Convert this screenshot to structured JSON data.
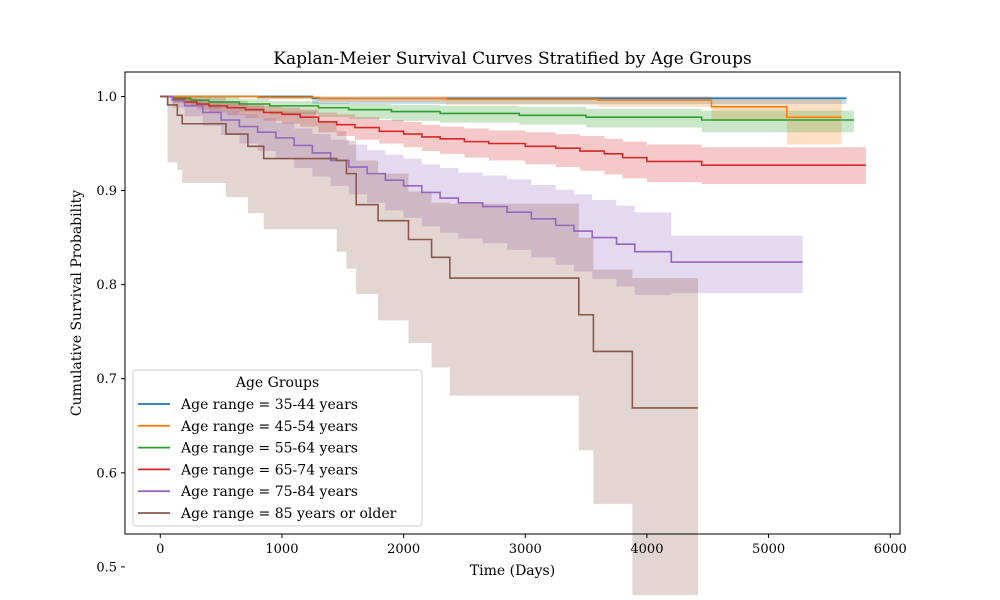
{
  "chart_data": {
    "type": "line",
    "title": "Kaplan-Meier Survival Curves Stratified by Age Groups",
    "xlabel": "Time (Days)",
    "ylabel": "Cumulative Survival Probability",
    "xlim": [
      -290,
      6080
    ],
    "ylim": [
      0.535,
      1.026
    ],
    "xticks": [
      0,
      1000,
      2000,
      3000,
      4000,
      5000,
      6000
    ],
    "xtick_labels": [
      "0",
      "1000",
      "2000",
      "3000",
      "4000",
      "5000",
      "6000"
    ],
    "yticks": [
      0.5,
      0.6,
      0.7,
      0.8,
      0.9,
      1.0
    ],
    "ytick_labels": [
      "0.5",
      "0.6",
      "0.7",
      "0.8",
      "0.9",
      "1.0"
    ],
    "grid": false,
    "legend": {
      "title": "Age Groups",
      "position": "lower-left"
    },
    "series": [
      {
        "name": "Age range = 35-44 years",
        "color": "#1f77b4",
        "x": [
          0,
          1250,
          5640
        ],
        "y": [
          1.0,
          0.998,
          0.998
        ],
        "ci_lower": [
          1.0,
          0.992,
          0.992
        ],
        "ci_upper": [
          1.0,
          1.0,
          1.0
        ]
      },
      {
        "name": "Age range = 45-54 years",
        "color": "#ff7f0e",
        "x": [
          0,
          800,
          1300,
          2350,
          3600,
          4530,
          5150,
          5600
        ],
        "y": [
          1.0,
          0.999,
          0.998,
          0.997,
          0.996,
          0.989,
          0.978,
          0.978
        ],
        "ci_lower": [
          1.0,
          0.997,
          0.994,
          0.991,
          0.989,
          0.974,
          0.949,
          0.949
        ],
        "ci_upper": [
          1.0,
          1.0,
          1.0,
          1.0,
          1.0,
          0.998,
          0.998,
          0.998
        ]
      },
      {
        "name": "Age range = 55-64 years",
        "color": "#2ca02c",
        "x": [
          0,
          100,
          250,
          400,
          650,
          900,
          1300,
          1550,
          1900,
          2300,
          2950,
          3500,
          4450,
          5700
        ],
        "y": [
          1.0,
          0.998,
          0.996,
          0.994,
          0.992,
          0.99,
          0.988,
          0.986,
          0.984,
          0.982,
          0.98,
          0.978,
          0.975,
          0.975
        ],
        "ci_lower": [
          1.0,
          0.994,
          0.99,
          0.987,
          0.984,
          0.981,
          0.978,
          0.976,
          0.974,
          0.972,
          0.97,
          0.967,
          0.962,
          0.962
        ],
        "ci_upper": [
          1.0,
          1.0,
          1.0,
          0.999,
          0.997,
          0.995,
          0.993,
          0.992,
          0.991,
          0.99,
          0.989,
          0.987,
          0.985,
          0.985
        ]
      },
      {
        "name": "Age range = 65-74 years",
        "color": "#d62728",
        "x": [
          0,
          100,
          200,
          300,
          400,
          550,
          700,
          850,
          1000,
          1150,
          1300,
          1450,
          1600,
          1800,
          2000,
          2150,
          2300,
          2500,
          2700,
          3000,
          3250,
          3450,
          3650,
          3800,
          4000,
          4450,
          5800
        ],
        "y": [
          1.0,
          0.997,
          0.994,
          0.992,
          0.99,
          0.988,
          0.986,
          0.983,
          0.981,
          0.978,
          0.973,
          0.97,
          0.967,
          0.963,
          0.96,
          0.957,
          0.955,
          0.952,
          0.95,
          0.947,
          0.945,
          0.942,
          0.939,
          0.935,
          0.931,
          0.927,
          0.927
        ],
        "ci_lower": [
          1.0,
          0.993,
          0.989,
          0.986,
          0.983,
          0.98,
          0.977,
          0.974,
          0.971,
          0.968,
          0.962,
          0.958,
          0.954,
          0.95,
          0.946,
          0.942,
          0.939,
          0.935,
          0.932,
          0.928,
          0.925,
          0.921,
          0.917,
          0.913,
          0.909,
          0.907,
          0.907
        ],
        "ci_upper": [
          1.0,
          1.0,
          0.998,
          0.996,
          0.995,
          0.993,
          0.992,
          0.99,
          0.988,
          0.986,
          0.983,
          0.981,
          0.978,
          0.975,
          0.973,
          0.97,
          0.968,
          0.966,
          0.964,
          0.962,
          0.96,
          0.958,
          0.955,
          0.952,
          0.949,
          0.946,
          0.946
        ]
      },
      {
        "name": "Age range = 75-84 years",
        "color": "#9467bd",
        "x": [
          0,
          100,
          200,
          350,
          500,
          650,
          800,
          950,
          1100,
          1250,
          1400,
          1550,
          1700,
          1850,
          2000,
          2150,
          2300,
          2450,
          2650,
          2850,
          3050,
          3250,
          3400,
          3550,
          3750,
          3900,
          4200,
          5280
        ],
        "y": [
          1.0,
          0.996,
          0.99,
          0.983,
          0.975,
          0.968,
          0.962,
          0.956,
          0.948,
          0.94,
          0.932,
          0.925,
          0.918,
          0.911,
          0.905,
          0.898,
          0.892,
          0.887,
          0.883,
          0.877,
          0.87,
          0.863,
          0.857,
          0.85,
          0.843,
          0.835,
          0.824,
          0.824
        ],
        "ci_lower": [
          1.0,
          0.988,
          0.979,
          0.969,
          0.959,
          0.95,
          0.942,
          0.934,
          0.924,
          0.915,
          0.905,
          0.896,
          0.887,
          0.879,
          0.871,
          0.862,
          0.855,
          0.849,
          0.844,
          0.837,
          0.829,
          0.821,
          0.814,
          0.806,
          0.798,
          0.789,
          0.791,
          0.791
        ],
        "ci_upper": [
          1.0,
          1.0,
          0.997,
          0.992,
          0.986,
          0.981,
          0.977,
          0.972,
          0.966,
          0.96,
          0.954,
          0.949,
          0.943,
          0.938,
          0.934,
          0.928,
          0.924,
          0.919,
          0.916,
          0.912,
          0.906,
          0.901,
          0.896,
          0.89,
          0.884,
          0.877,
          0.852,
          0.852
        ]
      },
      {
        "name": "Age range = 85 years or older",
        "color": "#8c564b",
        "x": [
          0,
          60,
          140,
          180,
          540,
          720,
          850,
          1280,
          1450,
          1530,
          1610,
          1790,
          2040,
          2230,
          2380,
          3440,
          3560,
          3880,
          4420
        ],
        "y": [
          1.0,
          0.991,
          0.98,
          0.971,
          0.96,
          0.947,
          0.934,
          0.934,
          0.932,
          0.918,
          0.885,
          0.868,
          0.848,
          0.829,
          0.807,
          0.768,
          0.729,
          0.669,
          0.669
        ],
        "ci_lower": [
          1.0,
          0.93,
          0.922,
          0.908,
          0.893,
          0.876,
          0.859,
          0.859,
          0.835,
          0.817,
          0.79,
          0.762,
          0.738,
          0.712,
          0.682,
          0.624,
          0.567,
          0.47,
          0.47
        ],
        "ci_upper": [
          1.0,
          1.0,
          1.0,
          1.0,
          0.995,
          0.99,
          0.984,
          0.974,
          0.963,
          0.953,
          0.932,
          0.918,
          0.899,
          0.887,
          0.886,
          0.85,
          0.816,
          0.807,
          0.807
        ]
      }
    ]
  }
}
